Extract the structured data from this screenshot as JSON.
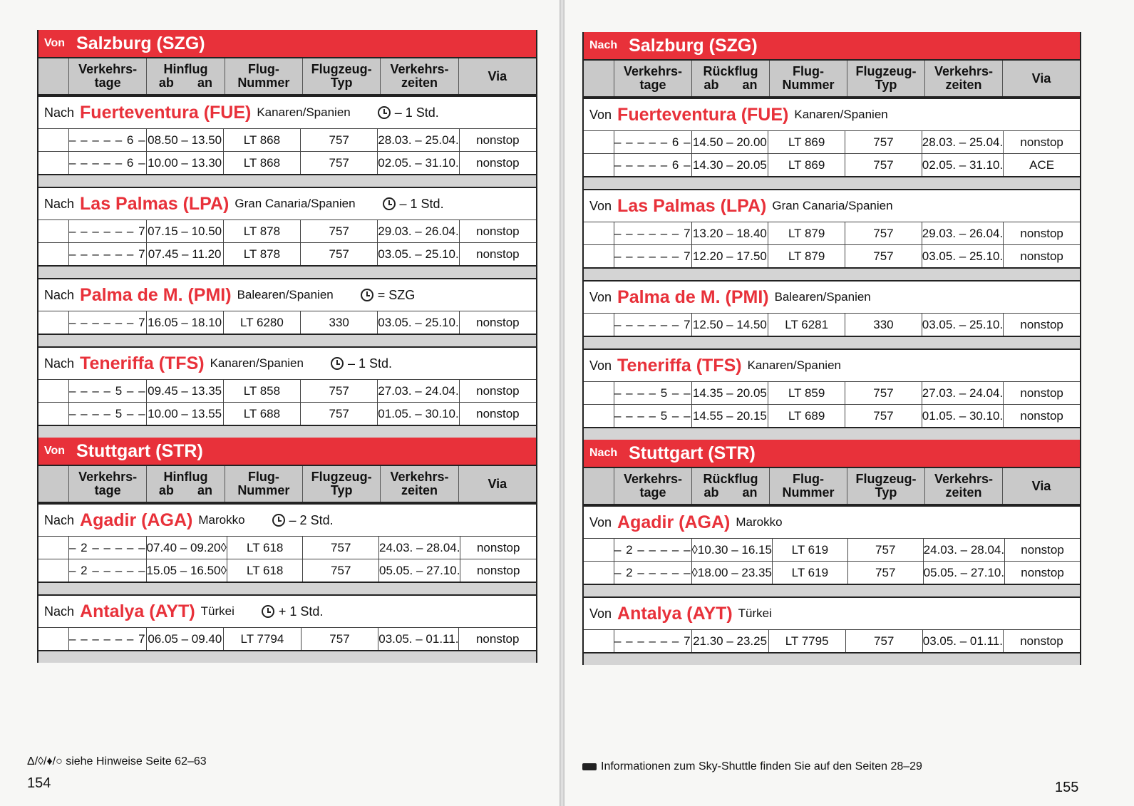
{
  "headers": {
    "days": [
      "Verkehrs-",
      "tage"
    ],
    "outbound": "Hinflug",
    "return": "Rückflug",
    "ab": "ab",
    "an": "an",
    "flight": [
      "Flug-",
      "Nummer"
    ],
    "aircraft": [
      "Flugzeug-",
      "Typ"
    ],
    "period": [
      "Verkehrs-",
      "zeiten"
    ],
    "via": "Via"
  },
  "left": {
    "sections": [
      {
        "dir": "Von",
        "city": "Salzburg (SZG)",
        "destinations": [
          {
            "pref": "Nach",
            "name": "Fuerteventura (FUE)",
            "region": "Kanaren/Spanien",
            "tz": "– 1 Std.",
            "rows": [
              [
                "– – – – – 6 –",
                "08.50 – 13.50",
                "LT 868",
                "757",
                "28.03. – 25.04.",
                "nonstop"
              ],
              [
                "– – – – – 6 –",
                "10.00 – 13.30",
                "LT 868",
                "757",
                "02.05. – 31.10.",
                "nonstop"
              ]
            ]
          },
          {
            "pref": "Nach",
            "name": "Las Palmas (LPA)",
            "region": "Gran Canaria/Spanien",
            "tz": "– 1 Std.",
            "rows": [
              [
                "– – – – – – 7",
                "07.15 – 10.50",
                "LT 878",
                "757",
                "29.03. – 26.04.",
                "nonstop"
              ],
              [
                "– – – – – – 7",
                "07.45 – 11.20",
                "LT 878",
                "757",
                "03.05. – 25.10.",
                "nonstop"
              ]
            ]
          },
          {
            "pref": "Nach",
            "name": "Palma de M. (PMI)",
            "region": "Balearen/Spanien",
            "tz": "= SZG",
            "rows": [
              [
                "– – – – – – 7",
                "16.05 – 18.10",
                "LT 6280",
                "330",
                "03.05. – 25.10.",
                "nonstop"
              ]
            ]
          },
          {
            "pref": "Nach",
            "name": "Teneriffa (TFS)",
            "region": "Kanaren/Spanien",
            "tz": "– 1 Std.",
            "rows": [
              [
                "– – – – 5 – –",
                "09.45 – 13.35",
                "LT 858",
                "757",
                "27.03. – 24.04.",
                "nonstop"
              ],
              [
                "– – – – 5 – –",
                "10.00 – 13.55",
                "LT 688",
                "757",
                "01.05. – 30.10.",
                "nonstop"
              ]
            ]
          }
        ]
      },
      {
        "dir": "Von",
        "city": "Stuttgart (STR)",
        "destinations": [
          {
            "pref": "Nach",
            "name": "Agadir (AGA)",
            "region": "Marokko",
            "tz": "– 2 Std.",
            "rows": [
              [
                "– 2 – – – – –",
                "07.40 – 09.20◊",
                "LT 618",
                "757",
                "24.03. – 28.04.",
                "nonstop"
              ],
              [
                "– 2 – – – – –",
                "15.05 – 16.50◊",
                "LT 618",
                "757",
                "05.05. – 27.10.",
                "nonstop"
              ]
            ]
          },
          {
            "pref": "Nach",
            "name": "Antalya (AYT)",
            "region": "Türkei",
            "tz": "+ 1 Std.",
            "rows": [
              [
                "– – – – – – 7",
                "06.05 – 09.40",
                "LT 7794",
                "757",
                "03.05. – 01.11.",
                "nonstop"
              ]
            ]
          }
        ]
      }
    ],
    "footer": "Δ/◊/♦/○ siehe Hinweise Seite 62–63",
    "page_number": "154"
  },
  "right": {
    "sections": [
      {
        "dir": "Nach",
        "city": "Salzburg (SZG)",
        "destinations": [
          {
            "pref": "Von",
            "name": "Fuerteventura (FUE)",
            "region": "Kanaren/Spanien",
            "rows": [
              [
                "– – – – – 6 –",
                "14.50 – 20.00",
                "LT 869",
                "757",
                "28.03. – 25.04.",
                "nonstop"
              ],
              [
                "– – – – – 6 –",
                "14.30 – 20.05",
                "LT 869",
                "757",
                "02.05. – 31.10.",
                "ACE"
              ]
            ]
          },
          {
            "pref": "Von",
            "name": "Las Palmas (LPA)",
            "region": "Gran Canaria/Spanien",
            "rows": [
              [
                "– – – – – – 7",
                "13.20 – 18.40",
                "LT 879",
                "757",
                "29.03. – 26.04.",
                "nonstop"
              ],
              [
                "– – – – – – 7",
                "12.20 – 17.50",
                "LT 879",
                "757",
                "03.05. – 25.10.",
                "nonstop"
              ]
            ]
          },
          {
            "pref": "Von",
            "name": "Palma de M. (PMI)",
            "region": "Balearen/Spanien",
            "rows": [
              [
                "– – – – – – 7",
                "12.50 – 14.50",
                "LT 6281",
                "330",
                "03.05. – 25.10.",
                "nonstop"
              ]
            ]
          },
          {
            "pref": "Von",
            "name": "Teneriffa (TFS)",
            "region": "Kanaren/Spanien",
            "rows": [
              [
                "– – – – 5 – –",
                "14.35 – 20.05",
                "LT 859",
                "757",
                "27.03. – 24.04.",
                "nonstop"
              ],
              [
                "– – – – 5 – –",
                "14.55 – 20.15",
                "LT 689",
                "757",
                "01.05. – 30.10.",
                "nonstop"
              ]
            ]
          }
        ]
      },
      {
        "dir": "Nach",
        "city": "Stuttgart (STR)",
        "destinations": [
          {
            "pref": "Von",
            "name": "Agadir (AGA)",
            "region": "Marokko",
            "rows": [
              [
                "– 2 – – – – –",
                "◊10.30 – 16.15",
                "LT 619",
                "757",
                "24.03. – 28.04.",
                "nonstop"
              ],
              [
                "– 2 – – – – –",
                "◊18.00 – 23.35",
                "LT 619",
                "757",
                "05.05. – 27.10.",
                "nonstop"
              ]
            ]
          },
          {
            "pref": "Von",
            "name": "Antalya (AYT)",
            "region": "Türkei",
            "rows": [
              [
                "– – – – – – 7",
                "21.30 – 23.25",
                "LT 7795",
                "757",
                "03.05. – 01.11.",
                "nonstop"
              ]
            ]
          }
        ]
      }
    ],
    "footer": "Informationen zum Sky-Shuttle finden Sie auf den Seiten 28–29",
    "page_number": "155"
  },
  "colors": {
    "accent": "#e8313a"
  }
}
